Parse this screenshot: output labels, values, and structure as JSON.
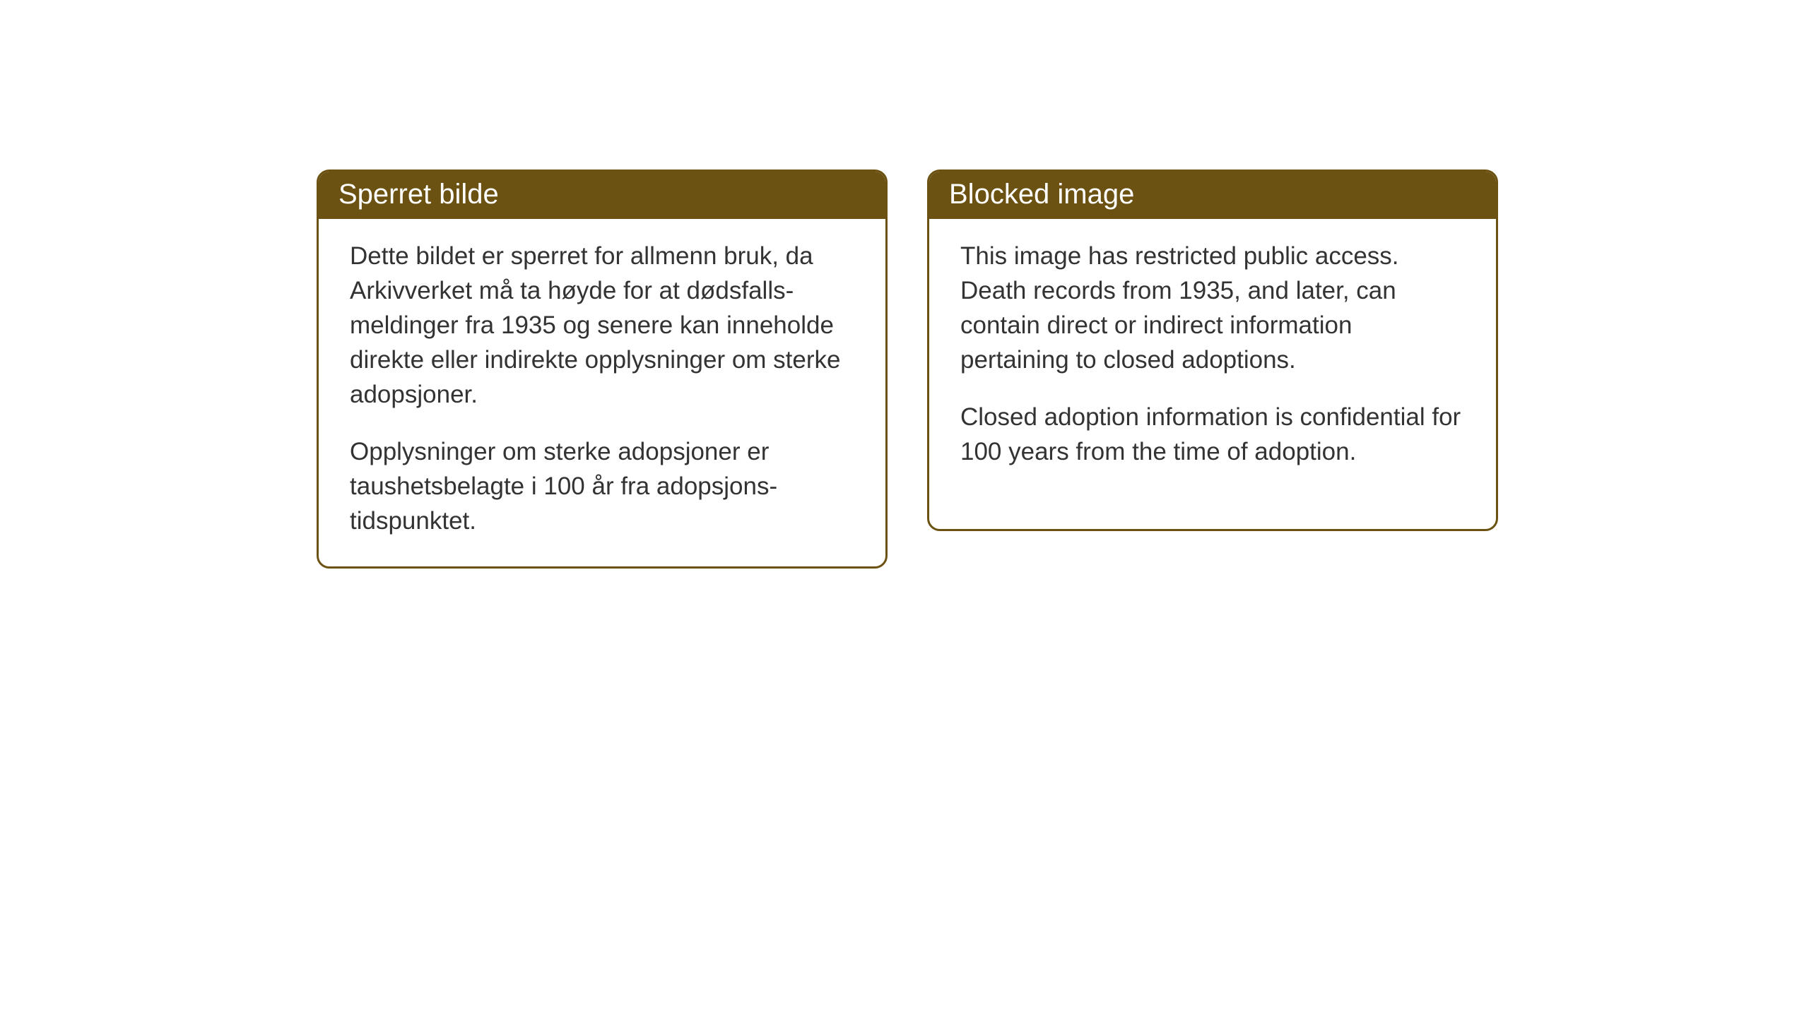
{
  "boxes": {
    "left": {
      "header": "Sperret bilde",
      "paragraph1": "Dette bildet er sperret for allmenn bruk, da Arkivverket må ta høyde for at dødsfalls-meldinger fra 1935 og senere kan inneholde direkte eller indirekte opplysninger om sterke adopsjoner.",
      "paragraph2": "Opplysninger om sterke adopsjoner er taushetsbelagte i 100 år fra adopsjons-tidspunktet."
    },
    "right": {
      "header": "Blocked image",
      "paragraph1": "This image has restricted public access. Death records from 1935, and later, can contain direct or indirect information pertaining to closed adoptions.",
      "paragraph2": "Closed adoption information is confidential for 100 years from the time of adoption."
    }
  },
  "styling": {
    "header_background": "#6b5213",
    "border_color": "#6b5213",
    "header_text_color": "#ffffff",
    "body_text_color": "#333333",
    "background_color": "#ffffff",
    "border_radius": 18,
    "header_fontsize": 40,
    "body_fontsize": 35
  }
}
